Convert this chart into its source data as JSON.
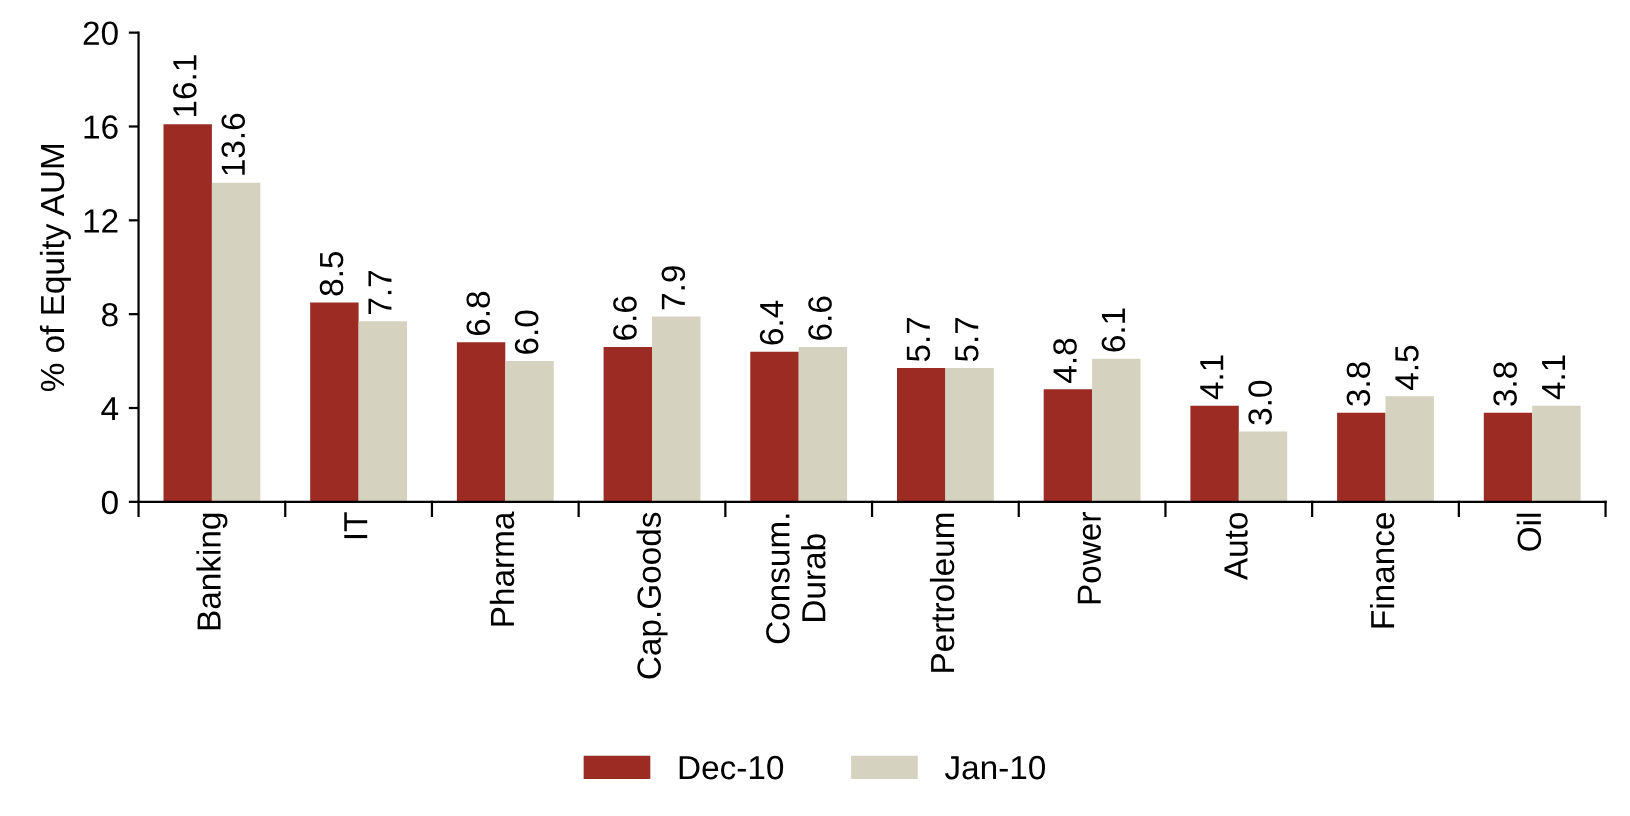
{
  "chart_data": {
    "type": "bar",
    "ylabel": "% of Equity AUM",
    "categories": [
      "Banking",
      "IT",
      "Pharma",
      "Cap.Goods",
      "Consum.\nDurab",
      "Pertroleum",
      "Power",
      "Auto",
      "Finance",
      "Oil"
    ],
    "series": [
      {
        "name": "Dec-10",
        "color": "#9b2b23",
        "values": [
          16.1,
          8.5,
          6.8,
          6.6,
          6.4,
          5.7,
          4.8,
          4.1,
          3.8,
          3.8
        ]
      },
      {
        "name": "Jan-10",
        "color": "#d5d2bf",
        "values": [
          13.6,
          7.7,
          6.0,
          7.9,
          6.6,
          5.7,
          6.1,
          3.0,
          4.5,
          4.1
        ]
      }
    ],
    "value_labels": [
      [
        "16.1",
        "8.5",
        "6.8",
        "6.6",
        "6.4",
        "5.7",
        "4.8",
        "4.1",
        "3.8",
        "3.8"
      ],
      [
        "13.6",
        "7.7",
        "6.0",
        "7.9",
        "6.6",
        "5.7",
        "6.1",
        "3.0",
        "4.5",
        "4.1"
      ]
    ],
    "ylim": [
      0,
      20
    ],
    "yticks": [
      0,
      4,
      8,
      12,
      16,
      20
    ],
    "grid": false,
    "legend": "bottom"
  }
}
